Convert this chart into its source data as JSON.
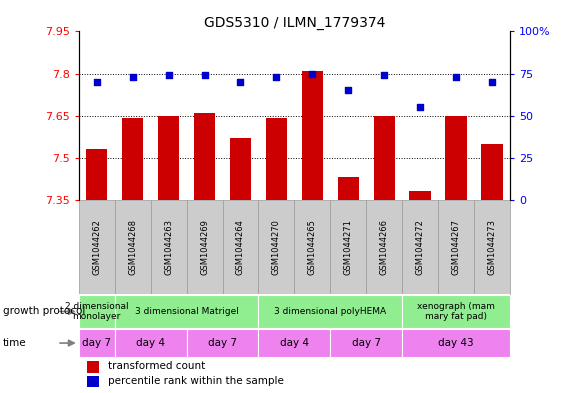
{
  "title": "GDS5310 / ILMN_1779374",
  "samples": [
    "GSM1044262",
    "GSM1044268",
    "GSM1044263",
    "GSM1044269",
    "GSM1044264",
    "GSM1044270",
    "GSM1044265",
    "GSM1044271",
    "GSM1044266",
    "GSM1044272",
    "GSM1044267",
    "GSM1044273"
  ],
  "transformed_count": [
    7.53,
    7.64,
    7.65,
    7.66,
    7.57,
    7.64,
    7.81,
    7.43,
    7.65,
    7.38,
    7.65,
    7.55
  ],
  "percentile_rank": [
    70,
    73,
    74,
    74,
    70,
    73,
    75,
    65,
    74,
    55,
    73,
    70
  ],
  "ylim_left": [
    7.35,
    7.95
  ],
  "ylim_right": [
    0,
    100
  ],
  "yticks_left": [
    7.35,
    7.5,
    7.65,
    7.8,
    7.95
  ],
  "yticks_right": [
    0,
    25,
    50,
    75,
    100
  ],
  "ytick_labels_right": [
    "0",
    "25",
    "50",
    "75",
    "100%"
  ],
  "bar_color": "#cc0000",
  "dot_color": "#0000cc",
  "sample_box_color": "#cccccc",
  "sample_box_edge": "#999999",
  "gp_groups": [
    {
      "label": "2 dimensional\nmonolayer",
      "start": 0,
      "end": 1,
      "color": "#90EE90"
    },
    {
      "label": "3 dimensional Matrigel",
      "start": 1,
      "end": 5,
      "color": "#90EE90"
    },
    {
      "label": "3 dimensional polyHEMA",
      "start": 5,
      "end": 9,
      "color": "#90EE90"
    },
    {
      "label": "xenograph (mam\nmary fat pad)",
      "start": 9,
      "end": 12,
      "color": "#90EE90"
    }
  ],
  "time_groups": [
    {
      "label": "day 7",
      "start": 0,
      "end": 1,
      "color": "#EE82EE"
    },
    {
      "label": "day 4",
      "start": 1,
      "end": 3,
      "color": "#EE82EE"
    },
    {
      "label": "day 7",
      "start": 3,
      "end": 5,
      "color": "#EE82EE"
    },
    {
      "label": "day 4",
      "start": 5,
      "end": 7,
      "color": "#EE82EE"
    },
    {
      "label": "day 7",
      "start": 7,
      "end": 9,
      "color": "#EE82EE"
    },
    {
      "label": "day 43",
      "start": 9,
      "end": 12,
      "color": "#EE82EE"
    }
  ]
}
